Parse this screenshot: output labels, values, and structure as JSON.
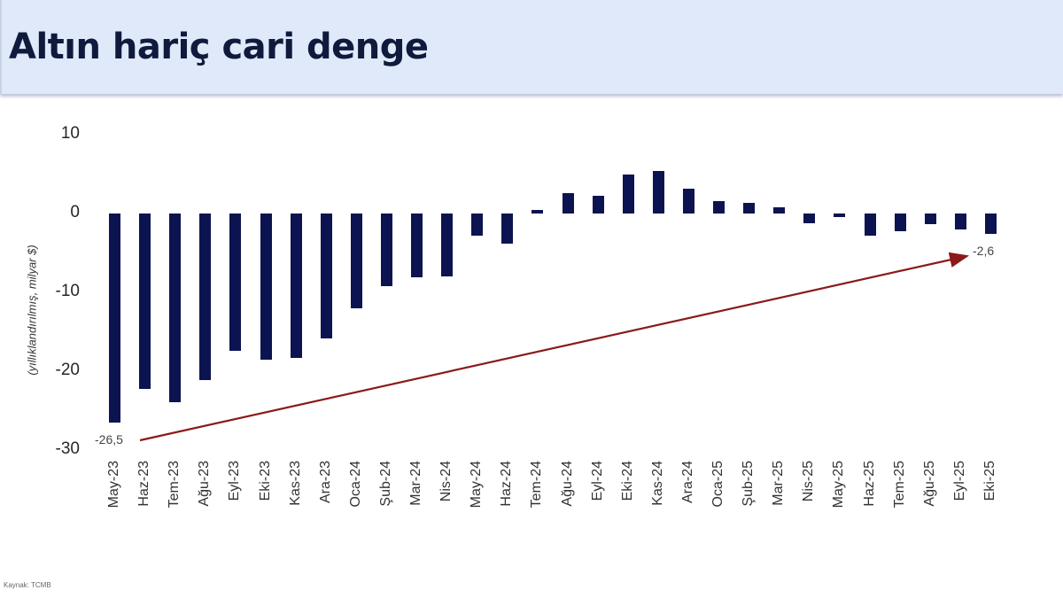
{
  "header": {
    "title": "Altın hariç cari denge"
  },
  "source": "Kaynak: TCMB",
  "colors": {
    "bar": "#0b1450",
    "arrow": "#8b1a1a",
    "header_bg": "#dfe9f9",
    "title": "#0f1a3c"
  },
  "chart_data": {
    "type": "bar",
    "title": "Altın hariç cari denge",
    "xlabel": "",
    "ylabel": "(yıllıklandırılmış, milyar $)",
    "ylim": [
      -30,
      10
    ],
    "yticks": [
      "10",
      "0",
      "-10",
      "-20",
      "-30"
    ],
    "grid": false,
    "legend": null,
    "categories": [
      "May-23",
      "Haz-23",
      "Tem-23",
      "Ağu-23",
      "Eyl-23",
      "Eki-23",
      "Kas-23",
      "Ara-23",
      "Oca-24",
      "Şub-24",
      "Mar-24",
      "Nis-24",
      "May-24",
      "Haz-24",
      "Tem-24",
      "Ağu-24",
      "Eyl-24",
      "Eki-24",
      "Kas-24",
      "Ara-24",
      "Oca-25",
      "Şub-25",
      "Mar-25",
      "Nis-25",
      "May-25",
      "Haz-25",
      "Tem-25",
      "Ağu-25",
      "Eyl-25",
      "Eki-25"
    ],
    "series": [
      {
        "name": "Altın hariç cari denge",
        "values": [
          -26.5,
          -22.2,
          -23.9,
          -21.1,
          -17.4,
          -18.5,
          -18.3,
          -15.8,
          -12.0,
          -9.2,
          -8.1,
          -8.0,
          -2.8,
          -3.8,
          0.4,
          2.6,
          2.3,
          4.9,
          5.4,
          3.1,
          1.6,
          1.4,
          0.8,
          -1.2,
          -0.5,
          -2.8,
          -2.3,
          -1.4,
          -2.0,
          -2.6
        ]
      }
    ],
    "annotations": [
      {
        "text": "-26,5",
        "category": "May-23",
        "value": -26.5
      },
      {
        "text": "-2,6",
        "category": "Eki-25",
        "value": -2.6
      },
      {
        "type": "arrow",
        "from": "May-23",
        "to": "Eki-25",
        "description": "upward trend arrow"
      }
    ]
  }
}
